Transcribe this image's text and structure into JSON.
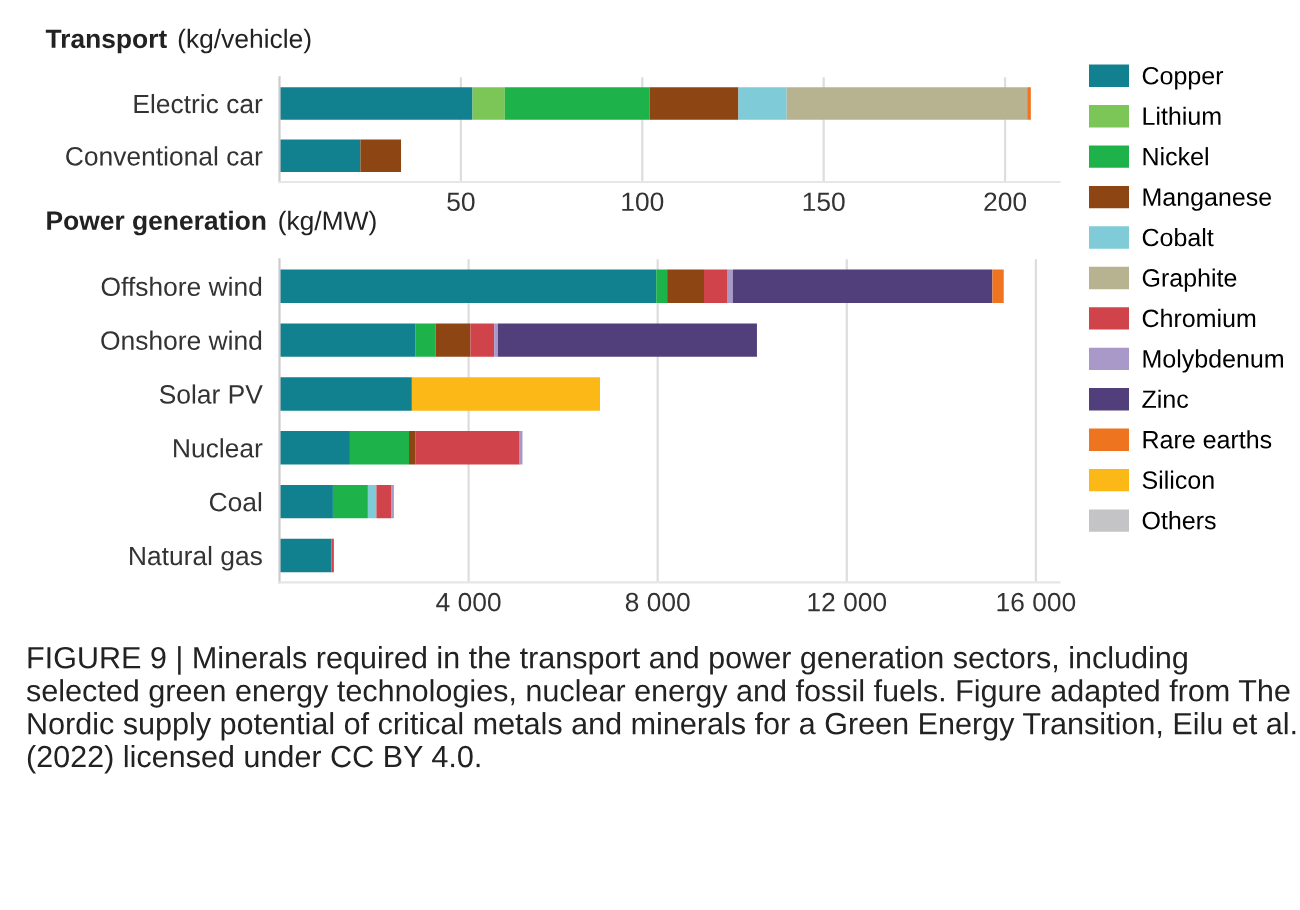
{
  "chart_data": [
    {
      "type": "bar",
      "orientation": "horizontal",
      "stacked": true,
      "title": "Transport",
      "subtitle": "(kg/vehicle)",
      "categories": [
        "Electric car",
        "Conventional car"
      ],
      "xlim": [
        0,
        215
      ],
      "xticks": [
        50,
        100,
        150,
        200
      ],
      "grid": "x",
      "legend": "right",
      "series": [
        {
          "name": "Copper",
          "color": "#12818f",
          "values": [
            53.2,
            22.3
          ]
        },
        {
          "name": "Lithium",
          "color": "#7cc657",
          "values": [
            8.9,
            null
          ]
        },
        {
          "name": "Nickel",
          "color": "#1db34a",
          "values": [
            39.9,
            null
          ]
        },
        {
          "name": "Manganese",
          "color": "#8e4514",
          "values": [
            24.5,
            11.2
          ]
        },
        {
          "name": "Cobalt",
          "color": "#7fcbd8",
          "values": [
            13.3,
            null
          ]
        },
        {
          "name": "Graphite",
          "color": "#b7b391",
          "values": [
            66.3,
            null
          ]
        },
        {
          "name": "Chromium",
          "color": "#d1434a",
          "values": [
            null,
            null
          ]
        },
        {
          "name": "Molybdenum",
          "color": "#a899c8",
          "values": [
            null,
            null
          ]
        },
        {
          "name": "Zinc",
          "color": "#513f7b",
          "values": [
            null,
            null
          ]
        },
        {
          "name": "Rare earths",
          "color": "#ee7420",
          "values": [
            1,
            null
          ]
        },
        {
          "name": "Silicon",
          "color": "#fbb817",
          "values": [
            null,
            null
          ]
        },
        {
          "name": "Others",
          "color": "#c4c4c6",
          "values": [
            null,
            null
          ]
        }
      ]
    },
    {
      "type": "bar",
      "orientation": "horizontal",
      "stacked": true,
      "title": "Power generation",
      "subtitle": "(kg/MW)",
      "categories": [
        "Offshore wind",
        "Onshore wind",
        "Solar PV",
        "Nuclear",
        "Coal",
        "Natural gas"
      ],
      "xlim": [
        0,
        16500
      ],
      "xticks": [
        {
          "value": 4000,
          "label": "4 000"
        },
        {
          "value": 8000,
          "label": "8 000"
        },
        {
          "value": 12000,
          "label": "12 000"
        },
        {
          "value": 16000,
          "label": "16 000"
        }
      ],
      "grid": "x",
      "annotations": [
        "FIGURE 9 | Minerals required in the transport and power generation sectors, including selected green energy technologies, nuclear energy and fossil fuels. Figure adapted from The Nordic supply potential of critical metals and minerals for a Green Energy Transition, Eilu et al. (2022) licensed under CC BY 4.0."
      ],
      "series": [
        {
          "color": "#12818f",
          "values": [
            7970,
            2880,
            2800,
            1490,
            1130,
            1100
          ]
        },
        {
          "color": "#1db34a",
          "values": [
            230,
            420,
            null,
            1250,
            740,
            null
          ]
        },
        {
          "color": "#8e4514",
          "values": [
            780,
            740,
            null,
            140,
            null,
            null
          ]
        },
        {
          "color": "#7fcbd8",
          "values": [
            null,
            null,
            null,
            null,
            180,
            null
          ]
        },
        {
          "color": "#d1434a",
          "values": [
            500,
            500,
            null,
            2200,
            310,
            50
          ]
        },
        {
          "color": "#a899c8",
          "values": [
            110,
            80,
            null,
            60,
            60,
            null
          ]
        },
        {
          "color": "#513f7b",
          "values": [
            5490,
            5480,
            null,
            null,
            null,
            null
          ]
        },
        {
          "color": "#ee7420",
          "values": [
            240,
            null,
            null,
            null,
            null,
            null
          ]
        },
        {
          "color": "#fbb817",
          "values": [
            null,
            null,
            3980,
            null,
            null,
            null
          ]
        }
      ]
    }
  ]
}
